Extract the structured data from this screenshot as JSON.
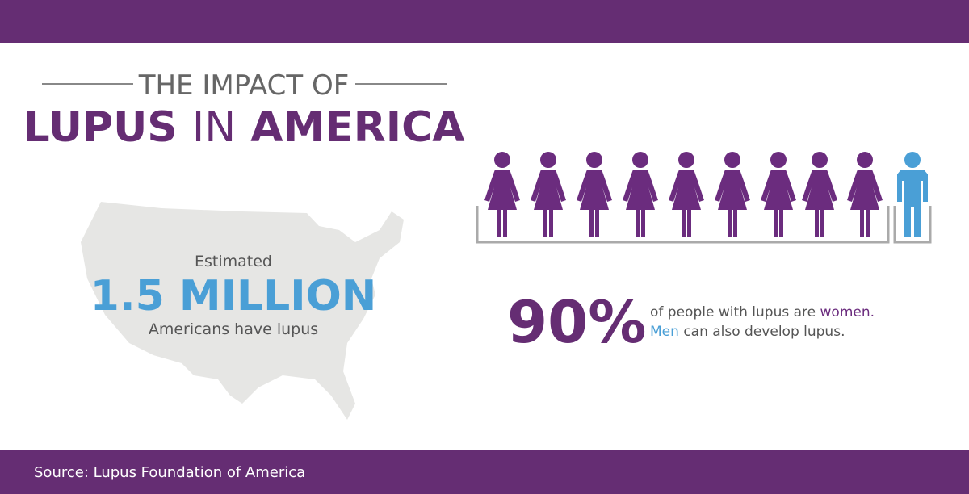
{
  "header": {
    "title_line1": "THE IMPACT OF",
    "title_word1": "LUPUS",
    "title_word2": "IN",
    "title_word3": "AMERICA"
  },
  "map_panel": {
    "label_top": "Estimated",
    "figure": "1.5 MILLION",
    "label_bottom": "Americans have lupus"
  },
  "gender_panel": {
    "figure": "90%",
    "line1_text": "of people with lupus are",
    "line1_highlight": "women.",
    "line2_highlight": "Men",
    "line2_text": "can also develop lupus."
  },
  "footer": {
    "source": "Source: Lupus Foundation of America"
  }
}
